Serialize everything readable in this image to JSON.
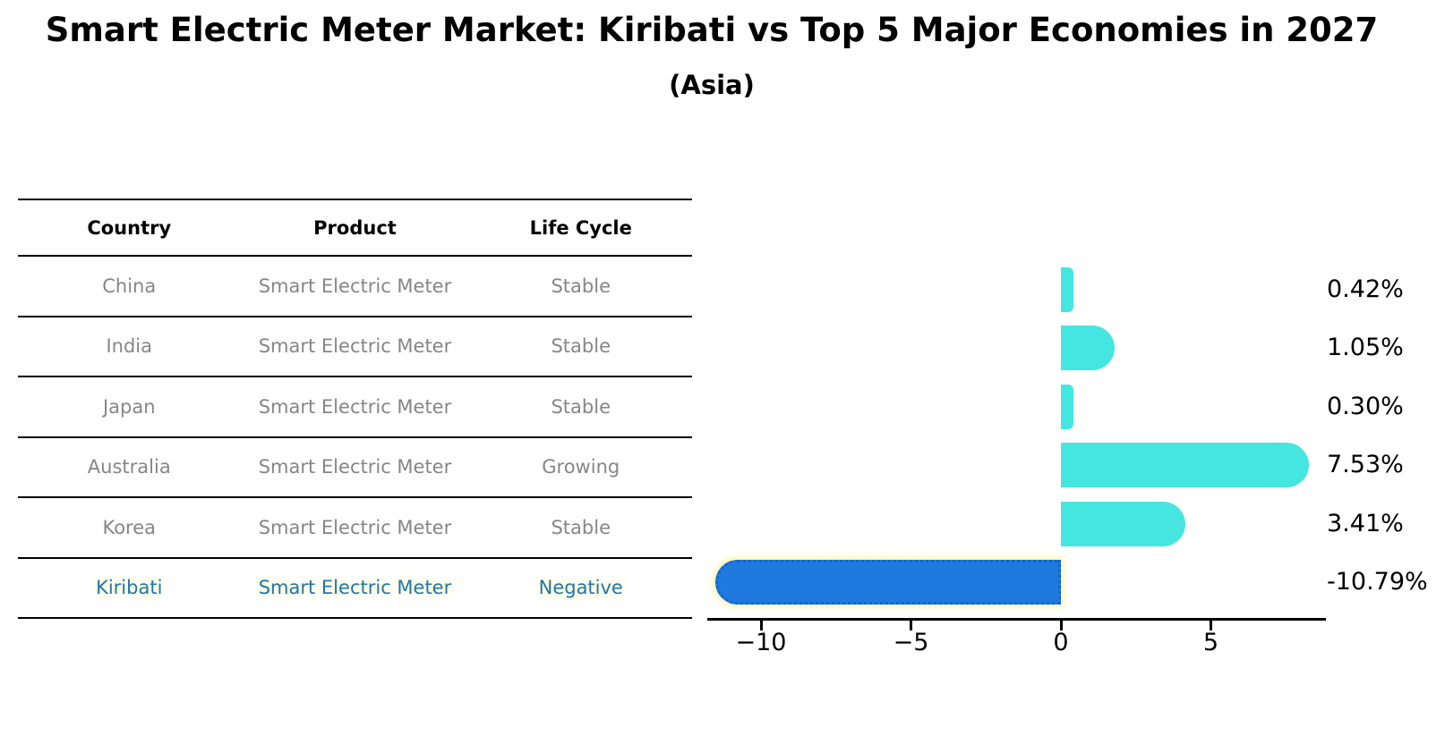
{
  "title": "Smart Electric Meter Market: Kiribati vs Top 5 Major Economies in 2027",
  "subtitle": "(Asia)",
  "table": {
    "headers": [
      "Country",
      "Product",
      "Life Cycle"
    ],
    "rows": [
      {
        "country": "China",
        "product": "Smart Electric Meter",
        "life_cycle": "Stable",
        "highlight": false
      },
      {
        "country": "India",
        "product": "Smart Electric Meter",
        "life_cycle": "Stable",
        "highlight": false
      },
      {
        "country": "Japan",
        "product": "Smart Electric Meter",
        "life_cycle": "Stable",
        "highlight": false
      },
      {
        "country": "Australia",
        "product": "Smart Electric Meter",
        "life_cycle": "Growing",
        "highlight": false
      },
      {
        "country": "Korea",
        "product": "Smart Electric Meter",
        "life_cycle": "Stable",
        "highlight": false
      },
      {
        "country": "Kiribati",
        "product": "Smart Electric Meter",
        "life_cycle": "Negative",
        "highlight": true
      }
    ]
  },
  "chart_data": {
    "type": "bar",
    "orientation": "horizontal",
    "categories": [
      "China",
      "India",
      "Japan",
      "Australia",
      "Korea",
      "Kiribati"
    ],
    "values": [
      0.42,
      1.05,
      0.3,
      7.53,
      3.41,
      -10.79
    ],
    "value_labels": [
      "0.42%",
      "1.05%",
      "0.30%",
      "7.53%",
      "3.41%",
      "-10.79%"
    ],
    "highlight_index": 5,
    "x_ticks": [
      -10,
      -5,
      0,
      5
    ],
    "x_tick_labels": [
      "−10",
      "−5",
      "0",
      "5"
    ],
    "xlim": [
      -11.8,
      8.8
    ],
    "grid": false,
    "legend": "none",
    "title": "Smart Electric Meter Market: Kiribati vs Top 5 Major Economies in 2027 (Asia)"
  },
  "colors": {
    "bar": "#45e6e0",
    "highlight_bar": "#1e7adf",
    "highlight_bar_border": "#1565c8",
    "highlight_text": "#1f77b4",
    "table_text": "#868686",
    "axis": "#000000"
  }
}
